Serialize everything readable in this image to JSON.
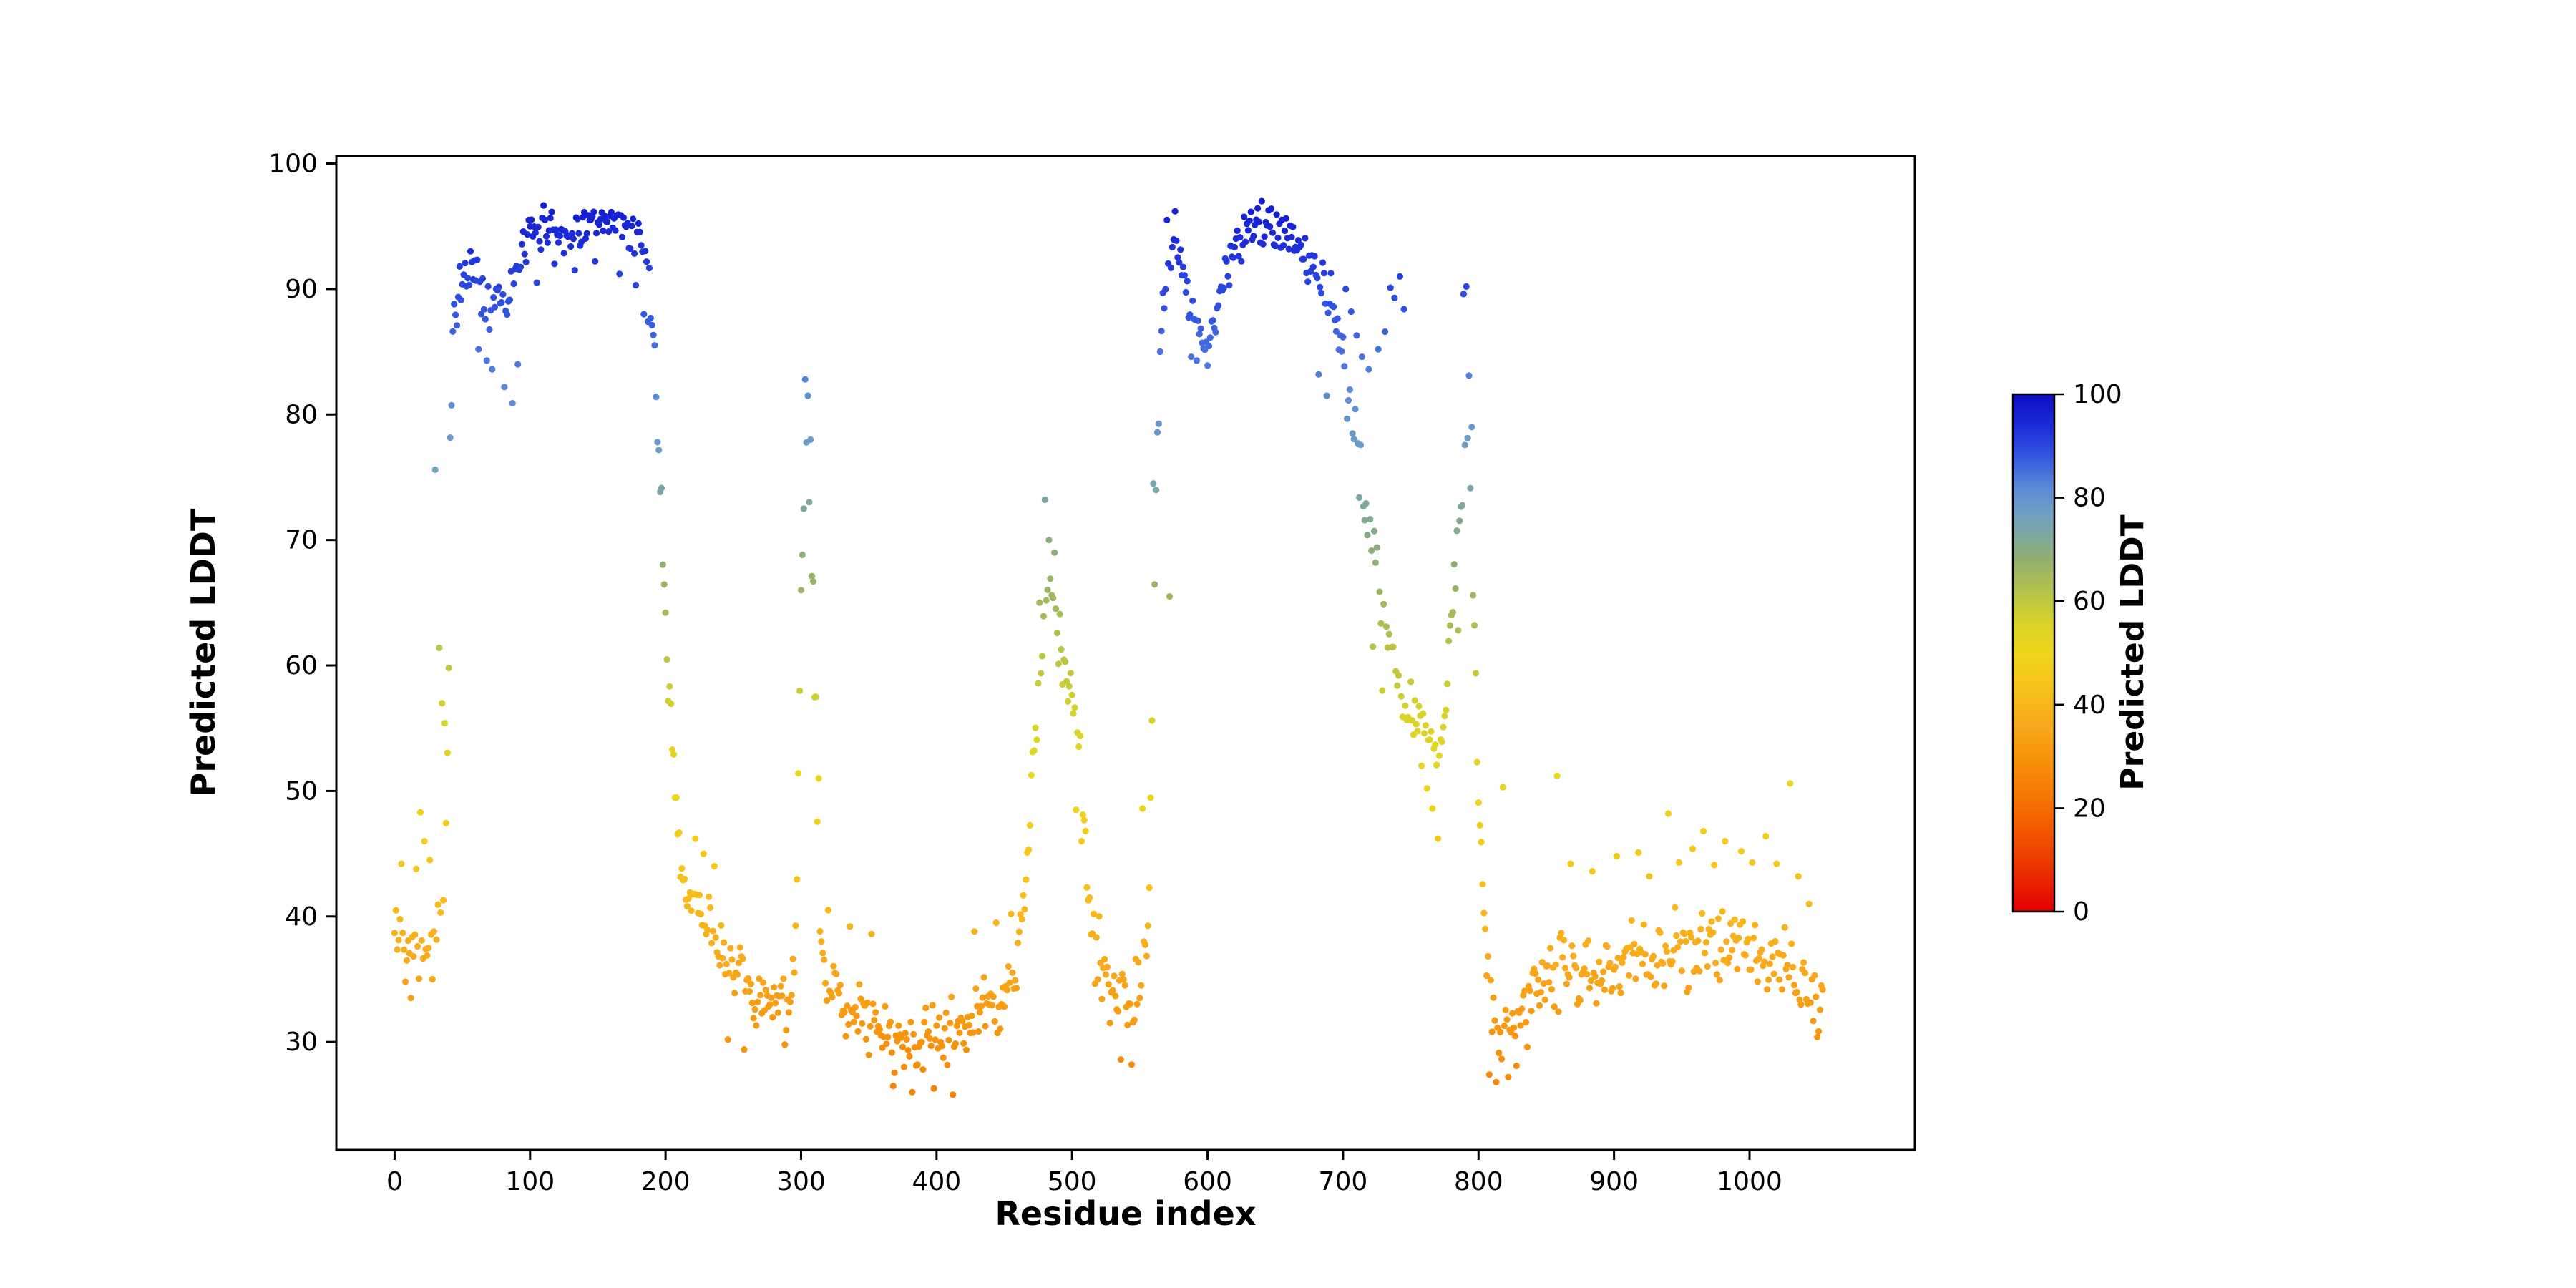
{
  "figure": {
    "background": "#ffffff"
  },
  "chart_data": {
    "type": "scatter",
    "title": "",
    "xlabel": "Residue index",
    "ylabel": "Predicted LDDT",
    "xlim": [
      -43,
      1122
    ],
    "ylim": [
      21.4,
      100.6
    ],
    "xticks": [
      0,
      100,
      200,
      300,
      400,
      500,
      600,
      700,
      800,
      900,
      1000
    ],
    "yticks": [
      30,
      40,
      50,
      60,
      70,
      80,
      90,
      100
    ],
    "grid": false,
    "legend": "none",
    "marker": {
      "shape": "circle",
      "radius_px": 4.6
    },
    "n_points": 1055,
    "seed": 42,
    "colorbar": {
      "label": "Predicted LDDT",
      "min": 0,
      "max": 100,
      "ticks": [
        0,
        20,
        40,
        60,
        80,
        100
      ]
    },
    "colormap_stops": [
      [
        0,
        "#e10000"
      ],
      [
        10,
        "#ee3c00"
      ],
      [
        20,
        "#f56d00"
      ],
      [
        28,
        "#f68c08"
      ],
      [
        36,
        "#f8a81c"
      ],
      [
        44,
        "#f6c51a"
      ],
      [
        50,
        "#efd51c"
      ],
      [
        56,
        "#d8d32a"
      ],
      [
        62,
        "#b3c24b"
      ],
      [
        68,
        "#92af70"
      ],
      [
        73,
        "#7da7a0"
      ],
      [
        77,
        "#6f9fc4"
      ],
      [
        82,
        "#5b8ad8"
      ],
      [
        88,
        "#3356e0"
      ],
      [
        94,
        "#1b2bd8"
      ],
      [
        100,
        "#0d0dc4"
      ]
    ],
    "trend_anchors": [
      [
        0,
        38.5
      ],
      [
        10,
        38.5
      ],
      [
        20,
        38.5
      ],
      [
        30,
        38.5
      ],
      [
        36,
        40
      ],
      [
        38,
        46
      ],
      [
        40,
        60
      ],
      [
        41,
        78
      ],
      [
        43,
        85
      ],
      [
        45,
        88
      ],
      [
        48,
        90
      ],
      [
        52,
        91
      ],
      [
        58,
        92
      ],
      [
        64,
        90
      ],
      [
        70,
        88.5
      ],
      [
        78,
        90
      ],
      [
        85,
        89.5
      ],
      [
        92,
        91.5
      ],
      [
        98,
        94
      ],
      [
        105,
        94.5
      ],
      [
        112,
        95.3
      ],
      [
        120,
        94.8
      ],
      [
        128,
        94.3
      ],
      [
        136,
        95
      ],
      [
        144,
        95.2
      ],
      [
        152,
        94.6
      ],
      [
        160,
        95.2
      ],
      [
        168,
        95
      ],
      [
        176,
        94.6
      ],
      [
        182,
        94
      ],
      [
        186,
        92
      ],
      [
        189,
        89.5
      ],
      [
        191,
        87.5
      ],
      [
        193,
        81
      ],
      [
        195,
        76
      ],
      [
        197,
        73.5
      ],
      [
        199,
        66
      ],
      [
        201,
        59.5
      ],
      [
        204,
        57
      ],
      [
        207,
        50
      ],
      [
        210,
        45.5
      ],
      [
        214,
        42
      ],
      [
        218,
        41.5
      ],
      [
        226,
        41
      ],
      [
        234,
        39
      ],
      [
        242,
        37
      ],
      [
        252,
        35
      ],
      [
        262,
        33.5
      ],
      [
        272,
        33
      ],
      [
        282,
        33
      ],
      [
        292,
        33.8
      ],
      [
        296,
        38
      ],
      [
        298,
        50
      ],
      [
        300,
        66
      ],
      [
        302,
        73
      ],
      [
        304,
        75
      ],
      [
        306,
        73
      ],
      [
        308,
        67
      ],
      [
        310,
        57
      ],
      [
        312,
        46
      ],
      [
        314,
        38
      ],
      [
        318,
        35
      ],
      [
        330,
        33.5
      ],
      [
        345,
        32
      ],
      [
        360,
        30.5
      ],
      [
        375,
        30
      ],
      [
        390,
        30
      ],
      [
        405,
        30.5
      ],
      [
        420,
        31
      ],
      [
        435,
        32.5
      ],
      [
        450,
        33.5
      ],
      [
        458,
        35
      ],
      [
        462,
        38
      ],
      [
        466,
        44
      ],
      [
        470,
        50
      ],
      [
        474,
        56
      ],
      [
        478,
        61
      ],
      [
        482,
        65
      ],
      [
        486,
        65.5
      ],
      [
        490,
        62
      ],
      [
        494,
        60
      ],
      [
        498,
        58
      ],
      [
        502,
        56.5
      ],
      [
        506,
        53
      ],
      [
        510,
        46
      ],
      [
        514,
        39
      ],
      [
        518,
        36.5
      ],
      [
        524,
        34.5
      ],
      [
        532,
        33
      ],
      [
        540,
        33
      ],
      [
        548,
        34
      ],
      [
        554,
        36.5
      ],
      [
        557,
        42
      ],
      [
        559,
        55
      ],
      [
        561,
        68
      ],
      [
        563,
        78
      ],
      [
        565,
        85
      ],
      [
        567,
        89.5
      ],
      [
        570,
        92
      ],
      [
        574,
        93
      ],
      [
        578,
        93
      ],
      [
        582,
        92
      ],
      [
        586,
        89.5
      ],
      [
        590,
        87.5
      ],
      [
        594,
        86.5
      ],
      [
        598,
        86
      ],
      [
        602,
        86.5
      ],
      [
        606,
        88
      ],
      [
        610,
        89.5
      ],
      [
        614,
        91
      ],
      [
        618,
        92.5
      ],
      [
        624,
        93.8
      ],
      [
        630,
        94.8
      ],
      [
        636,
        95.2
      ],
      [
        642,
        95.5
      ],
      [
        648,
        95.2
      ],
      [
        654,
        94.8
      ],
      [
        660,
        94.2
      ],
      [
        666,
        93.4
      ],
      [
        672,
        92.5
      ],
      [
        678,
        91.5
      ],
      [
        684,
        90.5
      ],
      [
        690,
        89.5
      ],
      [
        694,
        88.5
      ],
      [
        698,
        86
      ],
      [
        702,
        82.5
      ],
      [
        706,
        79.5
      ],
      [
        710,
        77
      ],
      [
        714,
        74.5
      ],
      [
        718,
        72
      ],
      [
        722,
        70
      ],
      [
        726,
        67.5
      ],
      [
        730,
        64.5
      ],
      [
        734,
        62
      ],
      [
        738,
        59.5
      ],
      [
        742,
        57.5
      ],
      [
        746,
        56
      ],
      [
        750,
        55.5
      ],
      [
        755,
        55.5
      ],
      [
        760,
        54.5
      ],
      [
        765,
        54
      ],
      [
        770,
        53.5
      ],
      [
        774,
        55
      ],
      [
        777,
        59
      ],
      [
        780,
        64
      ],
      [
        783,
        68
      ],
      [
        786,
        71
      ],
      [
        789,
        74
      ],
      [
        792,
        78
      ],
      [
        794,
        74
      ],
      [
        796,
        66
      ],
      [
        798,
        58
      ],
      [
        800,
        50
      ],
      [
        803,
        43
      ],
      [
        806,
        38
      ],
      [
        810,
        33
      ],
      [
        815,
        31
      ],
      [
        820,
        30.5
      ],
      [
        826,
        31.2
      ],
      [
        832,
        32.5
      ],
      [
        840,
        34
      ],
      [
        848,
        35
      ],
      [
        856,
        35.5
      ],
      [
        864,
        36
      ],
      [
        872,
        35.5
      ],
      [
        880,
        35.2
      ],
      [
        888,
        36
      ],
      [
        896,
        36.5
      ],
      [
        904,
        36
      ],
      [
        912,
        36.5
      ],
      [
        920,
        37
      ],
      [
        928,
        36.6
      ],
      [
        936,
        37
      ],
      [
        944,
        37.5
      ],
      [
        952,
        37
      ],
      [
        960,
        37.6
      ],
      [
        968,
        38
      ],
      [
        976,
        37.5
      ],
      [
        984,
        38
      ],
      [
        992,
        37.6
      ],
      [
        1000,
        37
      ],
      [
        1008,
        37.5
      ],
      [
        1016,
        37
      ],
      [
        1024,
        36.5
      ],
      [
        1032,
        36
      ],
      [
        1040,
        34.5
      ],
      [
        1046,
        33
      ],
      [
        1052,
        31.5
      ]
    ],
    "jitter_segments": [
      [
        0,
        37,
        3.8
      ],
      [
        37,
        44,
        3
      ],
      [
        44,
        96,
        2.6
      ],
      [
        96,
        185,
        1.9
      ],
      [
        185,
        214,
        2.2
      ],
      [
        214,
        296,
        3.1
      ],
      [
        296,
        314,
        3.2
      ],
      [
        314,
        461,
        3.2
      ],
      [
        461,
        514,
        2.8
      ],
      [
        514,
        556,
        3
      ],
      [
        556,
        568,
        2.5
      ],
      [
        568,
        696,
        2.1
      ],
      [
        696,
        746,
        3.2
      ],
      [
        746,
        776,
        2.1
      ],
      [
        776,
        802,
        2.4
      ],
      [
        802,
        1055,
        3.5
      ]
    ],
    "outliers": [
      [
        5,
        44.2
      ],
      [
        8,
        34.8
      ],
      [
        12,
        33.5
      ],
      [
        16,
        43.8
      ],
      [
        19,
        48.3
      ],
      [
        22,
        46
      ],
      [
        26,
        44.5
      ],
      [
        28,
        35
      ],
      [
        30,
        75.6
      ],
      [
        33,
        61.4
      ],
      [
        35,
        57
      ],
      [
        37,
        55.4
      ],
      [
        62,
        85.2
      ],
      [
        68,
        84.3
      ],
      [
        72,
        83.6
      ],
      [
        81,
        82.2
      ],
      [
        87,
        80.9
      ],
      [
        91,
        84
      ],
      [
        105,
        90.5
      ],
      [
        118,
        92
      ],
      [
        133,
        91.5
      ],
      [
        148,
        92.2
      ],
      [
        166,
        91.2
      ],
      [
        178,
        90.3
      ],
      [
        184,
        88
      ],
      [
        187,
        87.4
      ],
      [
        222,
        46.2
      ],
      [
        228,
        45
      ],
      [
        236,
        44
      ],
      [
        246,
        30.2
      ],
      [
        258,
        29.4
      ],
      [
        288,
        29.8
      ],
      [
        303,
        82.8
      ],
      [
        305,
        81.5
      ],
      [
        307,
        78
      ],
      [
        309,
        66.7
      ],
      [
        311,
        57.5
      ],
      [
        313,
        51
      ],
      [
        320,
        40.5
      ],
      [
        336,
        39.2
      ],
      [
        352,
        38.6
      ],
      [
        368,
        26.5
      ],
      [
        382,
        26
      ],
      [
        398,
        26.3
      ],
      [
        412,
        25.8
      ],
      [
        428,
        38.8
      ],
      [
        444,
        39.5
      ],
      [
        455,
        40.2
      ],
      [
        476,
        65
      ],
      [
        480,
        73.2
      ],
      [
        483,
        70
      ],
      [
        487,
        69
      ],
      [
        503,
        48.5
      ],
      [
        507,
        46
      ],
      [
        520,
        40
      ],
      [
        536,
        28.6
      ],
      [
        544,
        28.2
      ],
      [
        552,
        48.6
      ],
      [
        560,
        74.5
      ],
      [
        570,
        95.5
      ],
      [
        572,
        65.5
      ],
      [
        576,
        96.2
      ],
      [
        588,
        84.6
      ],
      [
        592,
        84.3
      ],
      [
        600,
        83.9
      ],
      [
        640,
        97
      ],
      [
        647,
        96.4
      ],
      [
        682,
        83.2
      ],
      [
        688,
        81.5
      ],
      [
        702,
        90
      ],
      [
        706,
        88.2
      ],
      [
        710,
        86.3
      ],
      [
        714,
        84.6
      ],
      [
        719,
        83.6
      ],
      [
        722,
        61.5
      ],
      [
        726,
        85.2
      ],
      [
        729,
        58
      ],
      [
        731,
        86.6
      ],
      [
        735,
        90.1
      ],
      [
        738,
        89.3
      ],
      [
        742,
        91
      ],
      [
        745,
        88.4
      ],
      [
        750,
        58.7
      ],
      [
        758,
        52
      ],
      [
        762,
        50.2
      ],
      [
        766,
        48.6
      ],
      [
        770,
        46.2
      ],
      [
        785,
        62.8
      ],
      [
        789,
        89.6
      ],
      [
        791,
        90.2
      ],
      [
        793,
        83.1
      ],
      [
        795,
        79
      ],
      [
        797,
        63.2
      ],
      [
        799,
        52.3
      ],
      [
        808,
        27.4
      ],
      [
        813,
        26.8
      ],
      [
        818,
        50.3
      ],
      [
        822,
        27.2
      ],
      [
        828,
        28.1
      ],
      [
        836,
        29.6
      ],
      [
        858,
        51.2
      ],
      [
        868,
        44.2
      ],
      [
        884,
        43.6
      ],
      [
        902,
        44.8
      ],
      [
        918,
        45.1
      ],
      [
        926,
        43.2
      ],
      [
        940,
        48.2
      ],
      [
        948,
        44.3
      ],
      [
        958,
        45.4
      ],
      [
        966,
        46.8
      ],
      [
        974,
        44.1
      ],
      [
        982,
        46
      ],
      [
        994,
        45.2
      ],
      [
        1002,
        44.3
      ],
      [
        1012,
        46.4
      ],
      [
        1020,
        44.2
      ],
      [
        1030,
        50.6
      ],
      [
        1036,
        43.2
      ],
      [
        1044,
        41
      ],
      [
        1050,
        30.4
      ]
    ]
  }
}
